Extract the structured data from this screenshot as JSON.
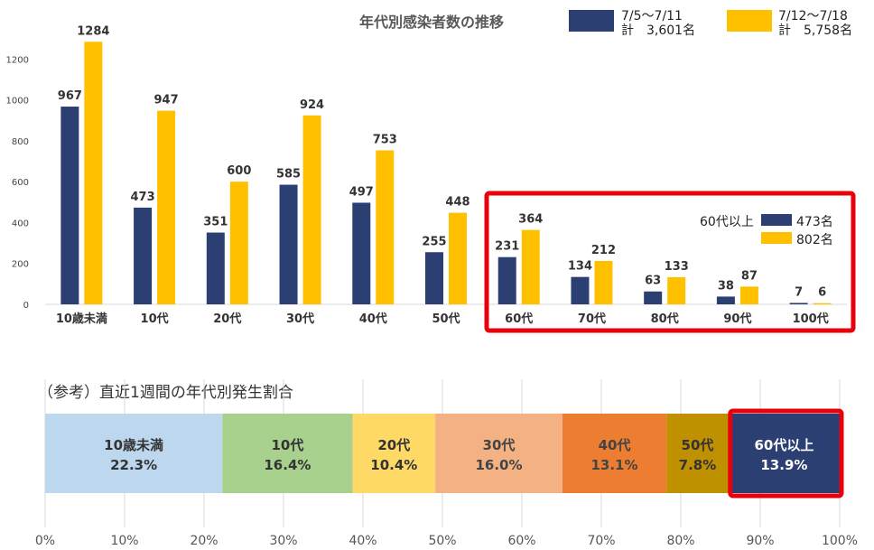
{
  "chart_data": [
    {
      "type": "bar",
      "title": "年代別感染者数の推移",
      "categories": [
        "10歳未満",
        "10代",
        "20代",
        "30代",
        "40代",
        "50代",
        "60代",
        "70代",
        "80代",
        "90代",
        "100代"
      ],
      "series": [
        {
          "name": "7/5〜7/11",
          "total_label": "計　3,601名",
          "color": "#2B3F72",
          "values": [
            967,
            473,
            351,
            585,
            497,
            255,
            231,
            134,
            63,
            38,
            7
          ]
        },
        {
          "name": "7/12〜7/18",
          "total_label": "計　5,758名",
          "color": "#FFC000",
          "values": [
            1284,
            947,
            600,
            924,
            753,
            448,
            364,
            212,
            133,
            87,
            6
          ]
        }
      ],
      "yticks": [
        0,
        200,
        400,
        600,
        800,
        1000,
        1200
      ],
      "ylim": [
        0,
        1400
      ],
      "xlabel": "",
      "ylabel": "",
      "legend_position": "top-right",
      "annotation": {
        "highlight": "60代〜100代",
        "label": "60代以上",
        "series_totals": [
          "473名",
          "802名"
        ]
      }
    },
    {
      "type": "bar",
      "orientation": "horizontal-stacked-100",
      "title": "（参考）直近1週間の年代別発生割合",
      "segments": [
        {
          "label": "10歳未満",
          "value": 22.3,
          "value_label": "22.3%",
          "color": "#BDD7EE",
          "text_color": "#333333"
        },
        {
          "label": "10代",
          "value": 16.4,
          "value_label": "16.4%",
          "color": "#A9D18E",
          "text_color": "#333333"
        },
        {
          "label": "20代",
          "value": 10.4,
          "value_label": "10.4%",
          "color": "#FFD966",
          "text_color": "#333333"
        },
        {
          "label": "30代",
          "value": 16.0,
          "value_label": "16.0%",
          "color": "#F4B183",
          "text_color": "#444444"
        },
        {
          "label": "40代",
          "value": 13.1,
          "value_label": "13.1%",
          "color": "#ED7D31",
          "text_color": "#444444"
        },
        {
          "label": "50代",
          "value": 7.8,
          "value_label": "7.8%",
          "color": "#BF9000",
          "text_color": "#333333"
        },
        {
          "label": "60代以上",
          "value": 13.9,
          "value_label": "13.9%",
          "color": "#2B3F72",
          "text_color": "#FFFFFF",
          "highlighted": true
        }
      ],
      "xticks": [
        "0%",
        "10%",
        "20%",
        "30%",
        "40%",
        "50%",
        "60%",
        "70%",
        "80%",
        "90%",
        "100%"
      ],
      "xlim": [
        0,
        100
      ]
    }
  ]
}
